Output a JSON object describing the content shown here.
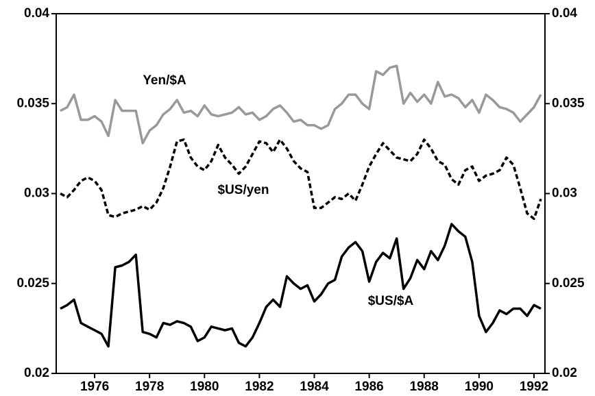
{
  "chart_data": {
    "type": "line",
    "x": [
      1974.75,
      1975,
      1975.25,
      1975.5,
      1975.75,
      1976,
      1976.25,
      1976.5,
      1976.75,
      1977,
      1977.25,
      1977.5,
      1977.75,
      1978,
      1978.25,
      1978.5,
      1978.75,
      1979,
      1979.25,
      1979.5,
      1979.75,
      1980,
      1980.25,
      1980.5,
      1980.75,
      1981,
      1981.25,
      1981.5,
      1981.75,
      1982,
      1982.25,
      1982.5,
      1982.75,
      1983,
      1983.25,
      1983.5,
      1983.75,
      1984,
      1984.25,
      1984.5,
      1984.75,
      1985,
      1985.25,
      1985.5,
      1985.75,
      1986,
      1986.25,
      1986.5,
      1986.75,
      1987,
      1987.25,
      1987.5,
      1987.75,
      1988,
      1988.25,
      1988.5,
      1988.75,
      1989,
      1989.25,
      1989.5,
      1989.75,
      1990,
      1990.25,
      1990.5,
      1990.75,
      1991,
      1991.25,
      1991.5,
      1991.75,
      1992,
      1992.25
    ],
    "series": [
      {
        "name": "Yen/$A",
        "color": "#999999",
        "style": "solid",
        "values": [
          0.0346,
          0.0348,
          0.0355,
          0.0341,
          0.0341,
          0.0343,
          0.034,
          0.0332,
          0.0352,
          0.0346,
          0.0346,
          0.0346,
          0.0328,
          0.0335,
          0.0338,
          0.0344,
          0.0347,
          0.0352,
          0.0345,
          0.0346,
          0.0343,
          0.0349,
          0.0344,
          0.0343,
          0.0344,
          0.0345,
          0.0348,
          0.0344,
          0.0345,
          0.0341,
          0.0343,
          0.0347,
          0.0349,
          0.0345,
          0.034,
          0.0341,
          0.0338,
          0.0338,
          0.0336,
          0.0338,
          0.0347,
          0.035,
          0.0355,
          0.0355,
          0.035,
          0.0347,
          0.0368,
          0.0366,
          0.037,
          0.0371,
          0.035,
          0.0356,
          0.0351,
          0.0355,
          0.035,
          0.0362,
          0.0354,
          0.0355,
          0.0353,
          0.0348,
          0.0352,
          0.0345,
          0.0355,
          0.0352,
          0.0348,
          0.0347,
          0.0345,
          0.034,
          0.0344,
          0.0348,
          0.0355
        ]
      },
      {
        "name": "$US/yen",
        "color": "#000000",
        "style": "dashed",
        "values": [
          0.03,
          0.0298,
          0.0302,
          0.0307,
          0.0309,
          0.0307,
          0.0302,
          0.0288,
          0.0287,
          0.0289,
          0.029,
          0.0291,
          0.0293,
          0.0291,
          0.0295,
          0.0303,
          0.0315,
          0.0329,
          0.033,
          0.032,
          0.0315,
          0.0313,
          0.0318,
          0.0327,
          0.032,
          0.0316,
          0.0311,
          0.0315,
          0.0322,
          0.0329,
          0.0328,
          0.0323,
          0.033,
          0.0325,
          0.0318,
          0.0314,
          0.0312,
          0.0292,
          0.0292,
          0.0295,
          0.0298,
          0.0297,
          0.03,
          0.0296,
          0.0305,
          0.0315,
          0.0322,
          0.0328,
          0.0324,
          0.032,
          0.0319,
          0.0318,
          0.0322,
          0.033,
          0.0325,
          0.0318,
          0.0316,
          0.0308,
          0.0305,
          0.0313,
          0.0315,
          0.0307,
          0.031,
          0.0311,
          0.0313,
          0.032,
          0.0316,
          0.0303,
          0.0289,
          0.0286,
          0.0297
        ]
      },
      {
        "name": "$US/$A",
        "color": "#000000",
        "style": "solid",
        "values": [
          0.0236,
          0.0238,
          0.0241,
          0.0228,
          0.0226,
          0.0224,
          0.0222,
          0.0215,
          0.0259,
          0.026,
          0.0262,
          0.0266,
          0.0223,
          0.0222,
          0.022,
          0.0228,
          0.0227,
          0.0229,
          0.0228,
          0.0226,
          0.0218,
          0.022,
          0.0226,
          0.0225,
          0.0224,
          0.0225,
          0.0217,
          0.0215,
          0.022,
          0.0228,
          0.0237,
          0.0241,
          0.0237,
          0.0254,
          0.025,
          0.0247,
          0.0249,
          0.024,
          0.0244,
          0.025,
          0.0252,
          0.0265,
          0.027,
          0.0273,
          0.0268,
          0.0251,
          0.0262,
          0.0267,
          0.0264,
          0.0275,
          0.0247,
          0.0253,
          0.0263,
          0.0258,
          0.0268,
          0.0263,
          0.0271,
          0.0283,
          0.0279,
          0.0276,
          0.0262,
          0.0232,
          0.0223,
          0.0228,
          0.0235,
          0.0233,
          0.0236,
          0.0236,
          0.0232,
          0.0238,
          0.0236
        ]
      }
    ],
    "xlim": [
      1974.6,
      1992.4
    ],
    "xticks": [
      1976,
      1978,
      1980,
      1982,
      1984,
      1986,
      1988,
      1990,
      1992
    ],
    "ylim": [
      0.02,
      0.04
    ],
    "yticks": [
      0.02,
      0.025,
      0.03,
      0.035,
      0.04
    ],
    "y2lim": [
      0.02,
      0.04
    ],
    "y2ticks": [
      0.02,
      0.025,
      0.03,
      0.035,
      0.04
    ],
    "grid": false
  }
}
